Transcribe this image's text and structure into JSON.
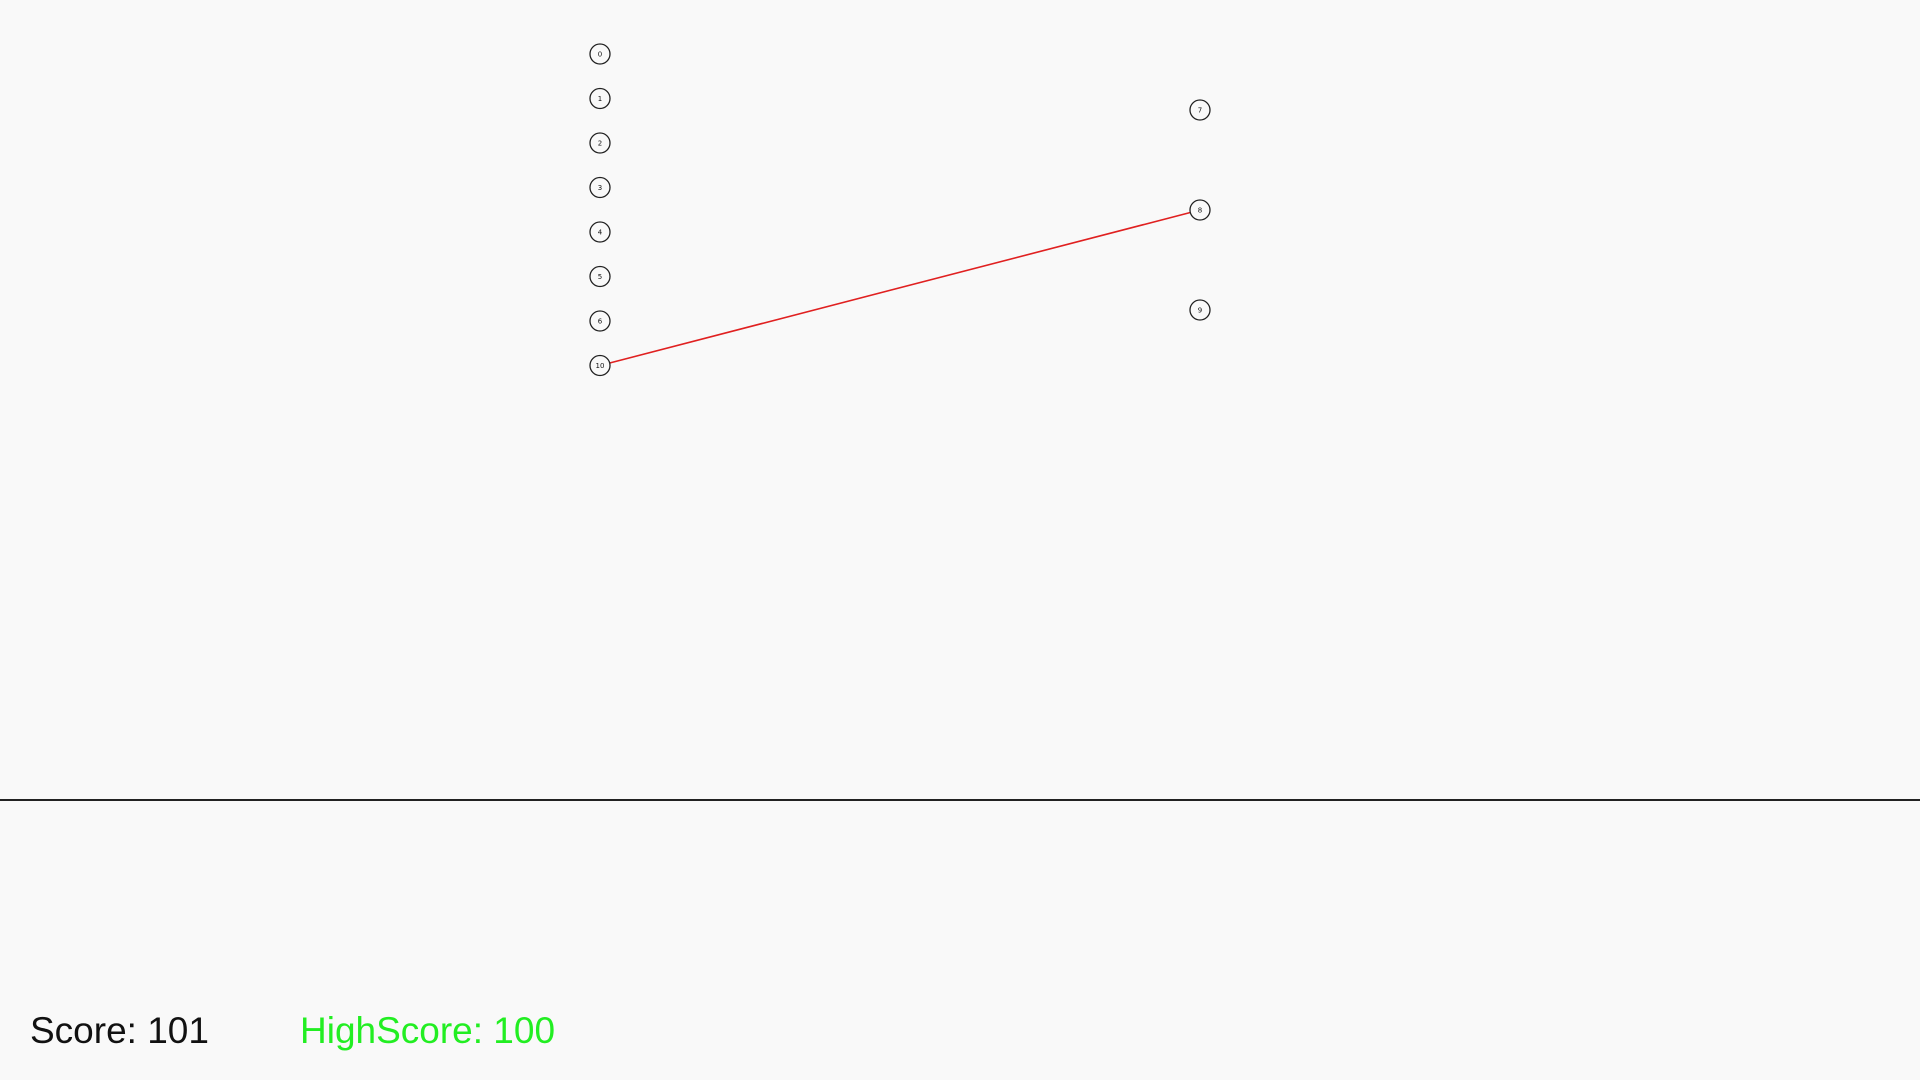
{
  "game": {
    "nodes": [
      {
        "label": "0",
        "column": "left"
      },
      {
        "label": "1",
        "column": "left"
      },
      {
        "label": "2",
        "column": "left"
      },
      {
        "label": "3",
        "column": "left"
      },
      {
        "label": "4",
        "column": "left"
      },
      {
        "label": "5",
        "column": "left"
      },
      {
        "label": "6",
        "column": "left"
      },
      {
        "label": "10",
        "column": "left"
      },
      {
        "label": "7",
        "column": "right"
      },
      {
        "label": "8",
        "column": "right"
      },
      {
        "label": "9",
        "column": "right"
      }
    ],
    "connections": [
      {
        "from": "10",
        "to": "8",
        "color": "#e02020"
      }
    ],
    "colors": {
      "background": "#f9f9f9",
      "node_stroke": "#222222",
      "connection": "#e02020",
      "divider": "#222222",
      "score_text": "#111111",
      "highscore_text": "#22ee22"
    }
  },
  "hud": {
    "score_text": "Score: 101",
    "highscore_text": "HighScore: 100"
  }
}
